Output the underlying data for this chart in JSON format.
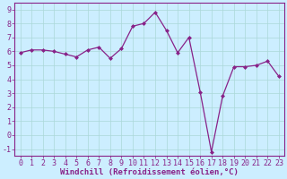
{
  "x": [
    0,
    1,
    2,
    3,
    4,
    5,
    6,
    7,
    8,
    9,
    10,
    11,
    12,
    13,
    14,
    15,
    16,
    17,
    18,
    19,
    20,
    21,
    22,
    23
  ],
  "y": [
    5.9,
    6.1,
    6.1,
    6.0,
    5.8,
    5.6,
    6.1,
    6.3,
    5.5,
    6.2,
    7.8,
    8.0,
    8.8,
    7.5,
    5.9,
    7.0,
    3.1,
    -1.2,
    2.8,
    4.9,
    4.9,
    5.0,
    5.3,
    4.2
  ],
  "xlim": [
    -0.5,
    23.5
  ],
  "ylim": [
    -1.5,
    9.5
  ],
  "yticks": [
    -1,
    0,
    1,
    2,
    3,
    4,
    5,
    6,
    7,
    8,
    9
  ],
  "xticks": [
    0,
    1,
    2,
    3,
    4,
    5,
    6,
    7,
    8,
    9,
    10,
    11,
    12,
    13,
    14,
    15,
    16,
    17,
    18,
    19,
    20,
    21,
    22,
    23
  ],
  "xlabel": "Windchill (Refroidissement éolien,°C)",
  "line_color": "#882288",
  "marker": "D",
  "marker_size": 2.0,
  "bg_color": "#cceeff",
  "grid_color": "#aad8d8",
  "xlabel_fontsize": 6.5,
  "tick_fontsize": 6.0,
  "tick_color": "#882288",
  "spine_color": "#882288"
}
